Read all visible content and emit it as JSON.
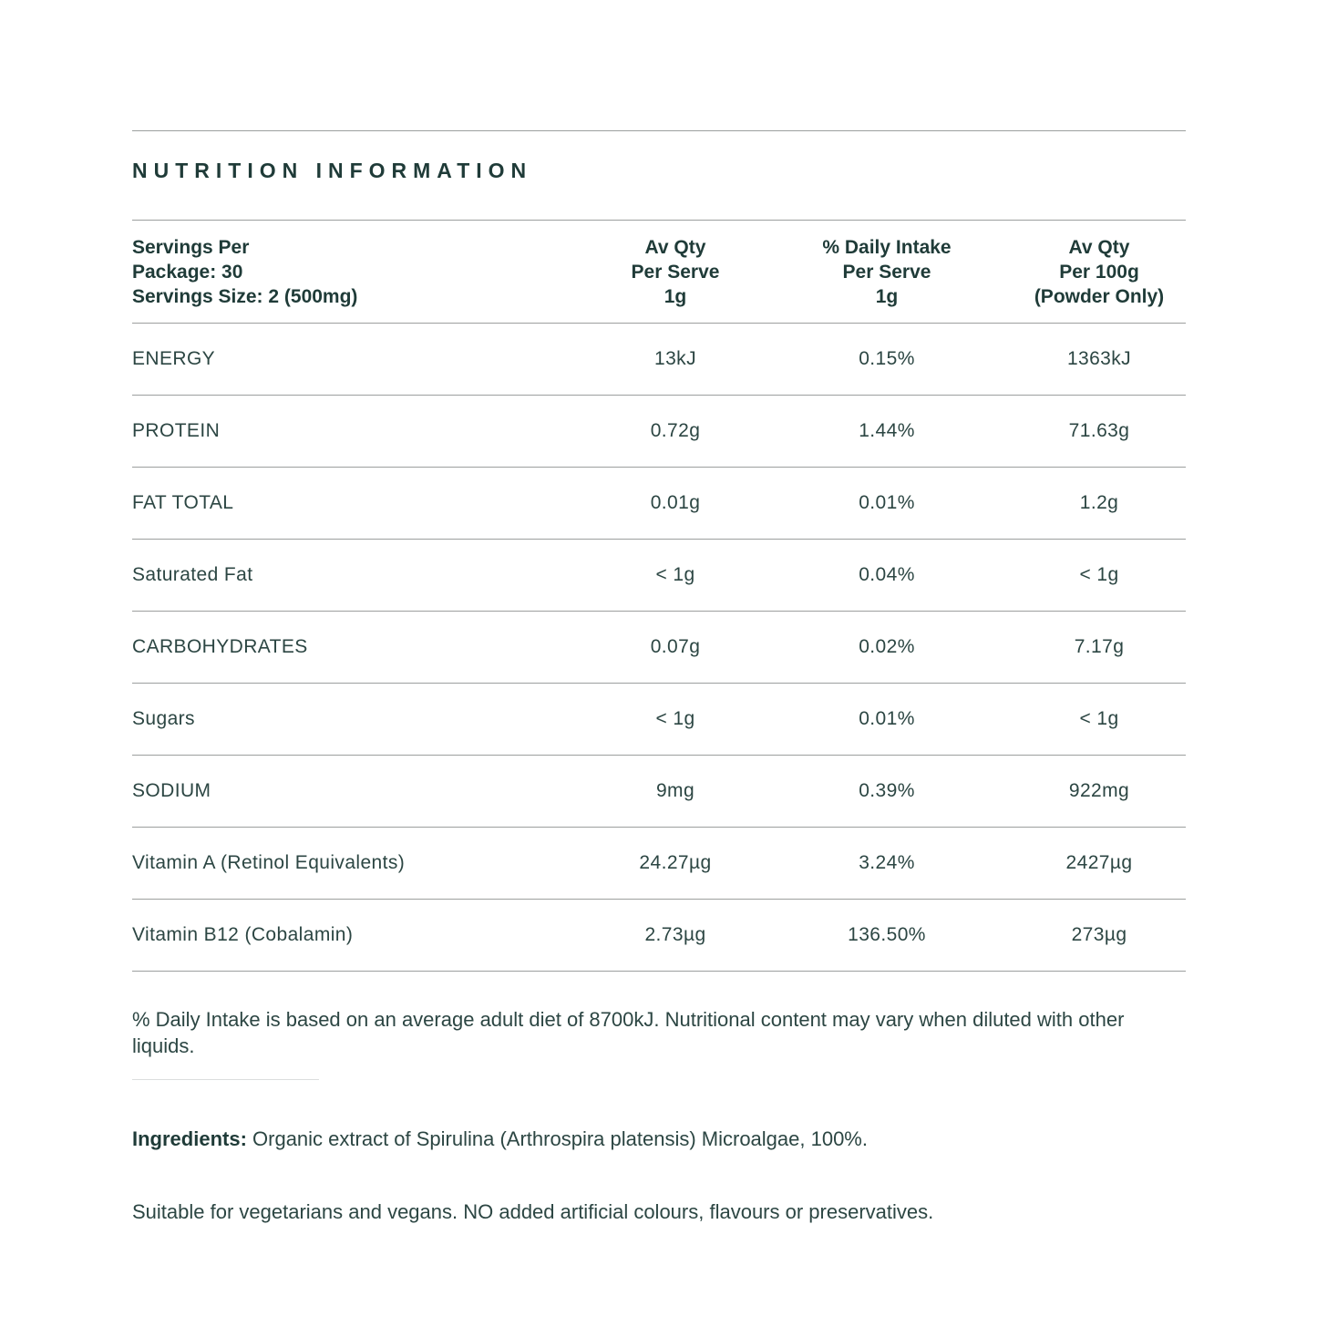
{
  "title": "NUTRITION INFORMATION",
  "table": {
    "header": {
      "col1": "Servings Per\nPackage: 30\nServings Size: 2 (500mg)",
      "col2": "Av Qty\nPer Serve\n1g",
      "col3": "% Daily Intake\nPer Serve\n1g",
      "col4": "Av Qty\nPer 100g\n(Powder Only)"
    },
    "rows": [
      {
        "label": "ENERGY",
        "per_serve": "13kJ",
        "daily_intake": "0.15%",
        "per_100g": "1363kJ"
      },
      {
        "label": "PROTEIN",
        "per_serve": "0.72g",
        "daily_intake": "1.44%",
        "per_100g": "71.63g"
      },
      {
        "label": "FAT TOTAL",
        "per_serve": "0.01g",
        "daily_intake": "0.01%",
        "per_100g": "1.2g"
      },
      {
        "label": "Saturated Fat",
        "per_serve": "< 1g",
        "daily_intake": "0.04%",
        "per_100g": "< 1g"
      },
      {
        "label": "CARBOHYDRATES",
        "per_serve": "0.07g",
        "daily_intake": "0.02%",
        "per_100g": "7.17g"
      },
      {
        "label": "Sugars",
        "per_serve": "< 1g",
        "daily_intake": "0.01%",
        "per_100g": "< 1g"
      },
      {
        "label": "SODIUM",
        "per_serve": "9mg",
        "daily_intake": "0.39%",
        "per_100g": "922mg"
      },
      {
        "label": "Vitamin A (Retinol Equivalents)",
        "per_serve": "24.27µg",
        "daily_intake": "3.24%",
        "per_100g": "2427µg"
      },
      {
        "label": "Vitamin B12 (Cobalamin)",
        "per_serve": "2.73µg",
        "daily_intake": "136.50%",
        "per_100g": "273µg"
      }
    ]
  },
  "notes": {
    "daily_intake_note": "% Daily Intake is based on an average adult diet of 8700kJ. Nutritional content may vary when diluted with other liquids.",
    "ingredients_label": "Ingredients:",
    "ingredients_text": " Organic extract of Spirulina (Arthrospira platensis) Microalgae, 100%.",
    "suitability_note": "Suitable for vegetarians and vegans. NO added artificial colours, flavours or preservatives."
  },
  "colors": {
    "text_dark": "#1f3b38",
    "text_body": "#2c4643",
    "divider": "#9c9f9e",
    "background": "#ffffff"
  }
}
